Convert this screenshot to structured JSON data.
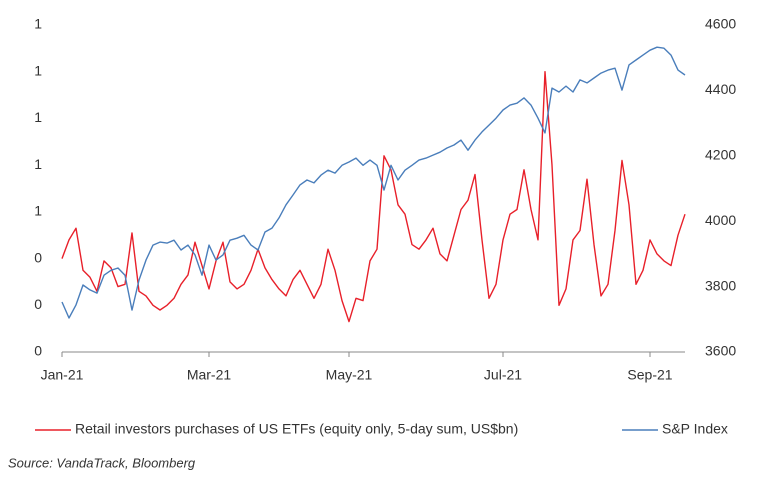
{
  "chart_data": {
    "type": "line",
    "categories": [
      "Jan-21",
      null,
      null,
      null,
      null,
      null,
      null,
      null,
      null,
      null,
      null,
      null,
      null,
      null,
      null,
      null,
      null,
      null,
      null,
      null,
      null,
      "Mar-21",
      null,
      null,
      null,
      null,
      null,
      null,
      null,
      null,
      null,
      null,
      null,
      null,
      null,
      null,
      null,
      null,
      null,
      null,
      null,
      "May-21",
      null,
      null,
      null,
      null,
      null,
      null,
      null,
      null,
      null,
      null,
      null,
      null,
      null,
      null,
      null,
      null,
      null,
      null,
      null,
      null,
      null,
      "Jul-21",
      null,
      null,
      null,
      null,
      null,
      null,
      null,
      null,
      null,
      null,
      null,
      null,
      null,
      null,
      null,
      null,
      null,
      null,
      null,
      null,
      "Sep-21",
      null,
      null,
      null,
      null,
      null
    ],
    "series": [
      {
        "name": "Retail investors purchases of US ETFs (equity only, 5-day sum, US$bn)",
        "color": "#e8202a",
        "axis": "y",
        "values": [
          0.4,
          0.48,
          0.53,
          0.35,
          0.32,
          0.26,
          0.39,
          0.36,
          0.28,
          0.29,
          0.51,
          0.26,
          0.24,
          0.2,
          0.18,
          0.2,
          0.23,
          0.29,
          0.33,
          0.47,
          0.37,
          0.27,
          0.39,
          0.47,
          0.3,
          0.27,
          0.29,
          0.35,
          0.44,
          0.36,
          0.31,
          0.27,
          0.24,
          0.31,
          0.35,
          0.29,
          0.23,
          0.29,
          0.44,
          0.35,
          0.22,
          0.13,
          0.23,
          0.22,
          0.39,
          0.44,
          0.84,
          0.78,
          0.63,
          0.59,
          0.46,
          0.44,
          0.48,
          0.53,
          0.42,
          0.39,
          0.5,
          0.61,
          0.65,
          0.76,
          0.48,
          0.23,
          0.29,
          0.48,
          0.59,
          0.61,
          0.78,
          0.61,
          0.48,
          1.2,
          0.8,
          0.2,
          0.27,
          0.48,
          0.52,
          0.74,
          0.46,
          0.24,
          0.29,
          0.52,
          0.82,
          0.63,
          0.29,
          0.35,
          0.48,
          0.42,
          0.39,
          0.37,
          0.5,
          0.59
        ]
      },
      {
        "name": "S&P Index",
        "color": "#4a7ebb",
        "axis": "y2",
        "values": [
          3753,
          3704,
          3744,
          3805,
          3790,
          3780,
          3835,
          3850,
          3857,
          3835,
          3728,
          3820,
          3881,
          3927,
          3936,
          3933,
          3942,
          3912,
          3927,
          3897,
          3835,
          3927,
          3881,
          3897,
          3942,
          3948,
          3957,
          3927,
          3912,
          3967,
          3979,
          4010,
          4050,
          4080,
          4111,
          4126,
          4117,
          4141,
          4156,
          4147,
          4171,
          4181,
          4193,
          4171,
          4187,
          4171,
          4095,
          4171,
          4126,
          4156,
          4171,
          4187,
          4193,
          4202,
          4211,
          4224,
          4233,
          4248,
          4217,
          4248,
          4273,
          4294,
          4315,
          4340,
          4355,
          4361,
          4377,
          4355,
          4315,
          4270,
          4407,
          4395,
          4413,
          4395,
          4432,
          4423,
          4438,
          4453,
          4462,
          4468,
          4401,
          4478,
          4493,
          4508,
          4523,
          4532,
          4529,
          4508,
          4462,
          4447
        ]
      }
    ],
    "ylim": [
      0,
      1.4
    ],
    "yticks": [
      0,
      {
        "value": 0.2,
        "label": "0"
      },
      {
        "value": 0.4,
        "label": "0"
      },
      {
        "value": 0.6,
        "label": "1"
      },
      {
        "value": 0.8,
        "label": "1"
      },
      1,
      {
        "value": 1.2,
        "label": "1"
      },
      {
        "value": 1.4,
        "label": "1"
      }
    ],
    "y2lim": [
      3600,
      4600
    ],
    "y2ticks": [
      3600,
      3800,
      4000,
      4200,
      4400,
      4600
    ],
    "grid": false,
    "legend": "bottom",
    "source": "Source: VandaTrack, Bloomberg"
  }
}
